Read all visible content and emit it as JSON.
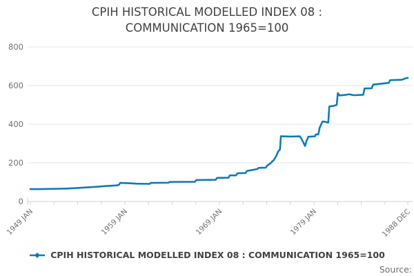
{
  "header": {
    "title_line1": "CPIH HISTORICAL MODELLED INDEX 08 :",
    "title_line2": "COMMUNICATION 1965=100"
  },
  "legend": {
    "label": "CPIH HISTORICAL MODELLED INDEX 08 : COMMUNICATION 1965=100"
  },
  "footer": {
    "source_label": "Source:"
  },
  "colors": {
    "series": "#0e7ab8",
    "grid": "#e6e6e6",
    "axis": "#c9d3de",
    "tick_label": "#6e6e6e",
    "title_text": "#414042"
  },
  "chart_data": {
    "type": "line",
    "title": "CPIH HISTORICAL MODELLED INDEX 08 : COMMUNICATION 1965=100",
    "xlabel": "",
    "ylabel": "",
    "ylim": [
      0,
      800
    ],
    "yticks": [
      0,
      200,
      400,
      600,
      800
    ],
    "grid": true,
    "legend_position": "bottom",
    "x_start_label": "1949 JAN",
    "x_end_label": "1988 DEC",
    "x_total_months": 479,
    "x_minor_tick_every_months": 30,
    "xtick_labels_by_month": {
      "0": "1949 JAN",
      "120": "1959 JAN",
      "240": "1969 JAN",
      "360": "1979 JAN",
      "479": "1988 DEC"
    },
    "series": [
      {
        "name": "CPIH HISTORICAL MODELLED INDEX 08 : COMMUNICATION 1965=100",
        "points": [
          [
            1949.0,
            64
          ],
          [
            1950.0,
            64
          ],
          [
            1951.0,
            65
          ],
          [
            1952.0,
            66
          ],
          [
            1953.0,
            67
          ],
          [
            1954.0,
            70
          ],
          [
            1955.0,
            73
          ],
          [
            1956.0,
            76
          ],
          [
            1957.0,
            80
          ],
          [
            1958.0,
            83
          ],
          [
            1958.35,
            85
          ],
          [
            1958.5,
            96
          ],
          [
            1959.3,
            95
          ],
          [
            1960.2,
            92
          ],
          [
            1961.6,
            91
          ],
          [
            1961.75,
            96
          ],
          [
            1963.6,
            97
          ],
          [
            1963.75,
            101
          ],
          [
            1966.4,
            102
          ],
          [
            1966.55,
            111
          ],
          [
            1968.6,
            112
          ],
          [
            1968.75,
            122
          ],
          [
            1969.95,
            123
          ],
          [
            1970.1,
            135
          ],
          [
            1970.75,
            135
          ],
          [
            1970.9,
            146
          ],
          [
            1971.75,
            147
          ],
          [
            1971.9,
            158
          ],
          [
            1973.0,
            168
          ],
          [
            1973.15,
            174
          ],
          [
            1973.9,
            175
          ],
          [
            1974.05,
            186
          ],
          [
            1974.4,
            198
          ],
          [
            1974.75,
            215
          ],
          [
            1975.0,
            235
          ],
          [
            1975.2,
            258
          ],
          [
            1975.4,
            270
          ],
          [
            1975.5,
            338
          ],
          [
            1976.5,
            336
          ],
          [
            1977.5,
            337
          ],
          [
            1977.7,
            322
          ],
          [
            1978.05,
            287
          ],
          [
            1978.2,
            312
          ],
          [
            1978.4,
            335
          ],
          [
            1979.1,
            337
          ],
          [
            1979.2,
            347
          ],
          [
            1979.45,
            347
          ],
          [
            1979.6,
            382
          ],
          [
            1979.9,
            414
          ],
          [
            1980.2,
            412
          ],
          [
            1980.5,
            408
          ],
          [
            1980.62,
            492
          ],
          [
            1981.0,
            494
          ],
          [
            1981.4,
            500
          ],
          [
            1981.52,
            561
          ],
          [
            1981.7,
            549
          ],
          [
            1982.4,
            552
          ],
          [
            1982.7,
            555
          ],
          [
            1983.2,
            550
          ],
          [
            1984.2,
            552
          ],
          [
            1984.35,
            585
          ],
          [
            1985.1,
            586
          ],
          [
            1985.25,
            605
          ],
          [
            1986.2,
            610
          ],
          [
            1986.9,
            614
          ],
          [
            1987.05,
            628
          ],
          [
            1988.3,
            630
          ],
          [
            1988.6,
            636
          ],
          [
            1988.92,
            640
          ]
        ]
      }
    ]
  }
}
